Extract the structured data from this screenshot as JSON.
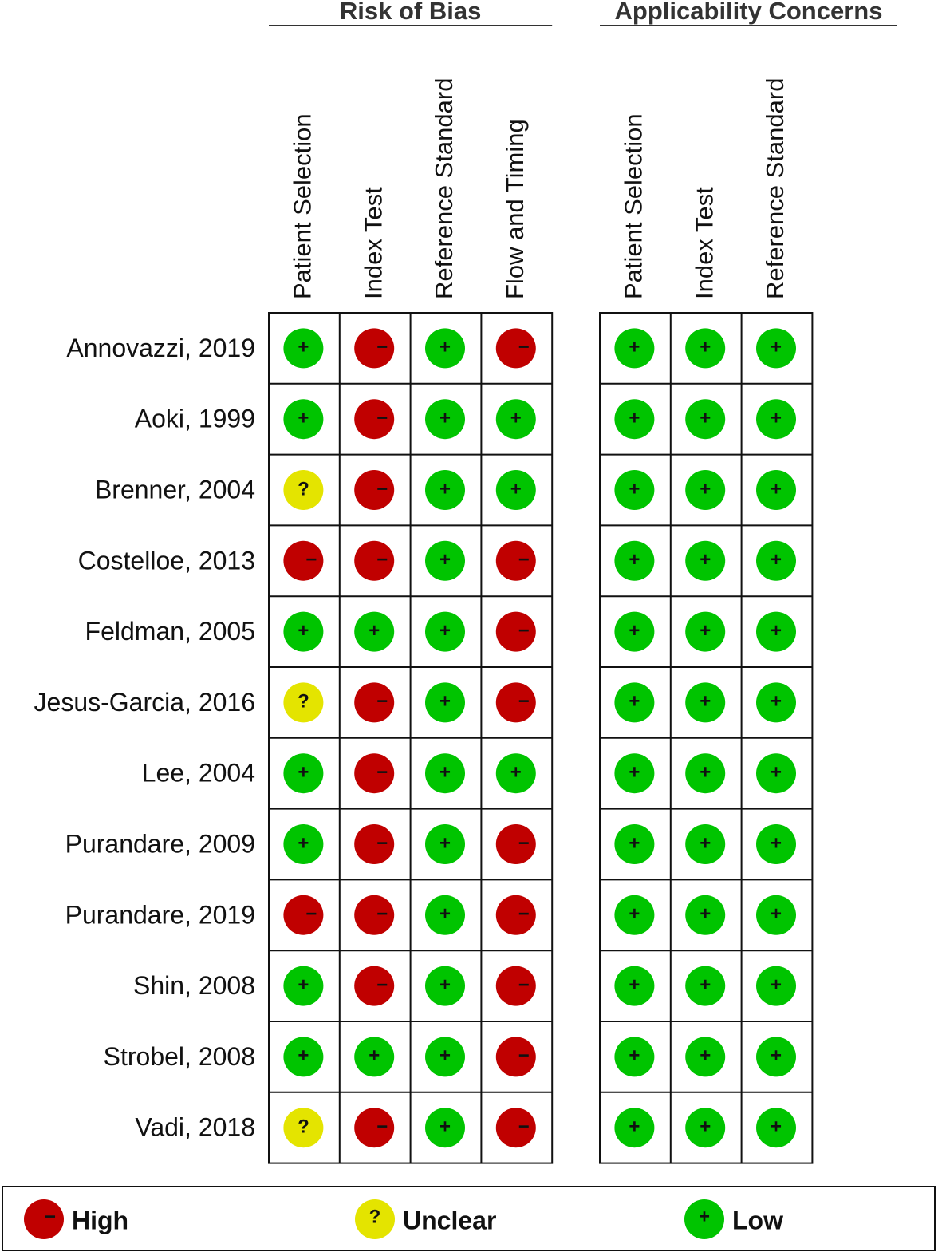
{
  "groups": [
    {
      "title": "Risk of Bias",
      "columns": [
        "Patient Selection",
        "Index Test",
        "Reference Standard",
        "Flow and Timing"
      ]
    },
    {
      "title": "Applicability Concerns",
      "columns": [
        "Patient Selection",
        "Index Test",
        "Reference Standard"
      ]
    }
  ],
  "rows": [
    {
      "study": "Annovazzi, 2019",
      "judgments": [
        [
          "+",
          "−",
          "+",
          "−"
        ],
        [
          "+",
          "+",
          "+"
        ]
      ]
    },
    {
      "study": "Aoki, 1999",
      "judgments": [
        [
          "+",
          "−",
          "+",
          "+"
        ],
        [
          "+",
          "+",
          "+"
        ]
      ]
    },
    {
      "study": "Brenner, 2004",
      "judgments": [
        [
          "?",
          "−",
          "+",
          "+"
        ],
        [
          "+",
          "+",
          "+"
        ]
      ]
    },
    {
      "study": "Costelloe, 2013",
      "judgments": [
        [
          "−",
          "−",
          "+",
          "−"
        ],
        [
          "+",
          "+",
          "+"
        ]
      ]
    },
    {
      "study": "Feldman, 2005",
      "judgments": [
        [
          "+",
          "+",
          "+",
          "−"
        ],
        [
          "+",
          "+",
          "+"
        ]
      ]
    },
    {
      "study": "Jesus-Garcia, 2016",
      "judgments": [
        [
          "?",
          "−",
          "+",
          "−"
        ],
        [
          "+",
          "+",
          "+"
        ]
      ]
    },
    {
      "study": "Lee, 2004",
      "judgments": [
        [
          "+",
          "−",
          "+",
          "+"
        ],
        [
          "+",
          "+",
          "+"
        ]
      ]
    },
    {
      "study": "Purandare, 2009",
      "judgments": [
        [
          "+",
          "−",
          "+",
          "−"
        ],
        [
          "+",
          "+",
          "+"
        ]
      ]
    },
    {
      "study": "Purandare, 2019",
      "judgments": [
        [
          "−",
          "−",
          "+",
          "−"
        ],
        [
          "+",
          "+",
          "+"
        ]
      ]
    },
    {
      "study": "Shin, 2008",
      "judgments": [
        [
          "+",
          "−",
          "+",
          "−"
        ],
        [
          "+",
          "+",
          "+"
        ]
      ]
    },
    {
      "study": "Strobel, 2008",
      "judgments": [
        [
          "+",
          "+",
          "+",
          "−"
        ],
        [
          "+",
          "+",
          "+"
        ]
      ]
    },
    {
      "study": "Vadi, 2018",
      "judgments": [
        [
          "?",
          "−",
          "+",
          "−"
        ],
        [
          "+",
          "+",
          "+"
        ]
      ]
    }
  ],
  "legend": [
    {
      "symbol": "−",
      "label": "High",
      "color": "#c00000"
    },
    {
      "symbol": "?",
      "label": "Unclear",
      "color": "#e4e400"
    },
    {
      "symbol": "+",
      "label": "Low",
      "color": "#00c400"
    }
  ]
}
